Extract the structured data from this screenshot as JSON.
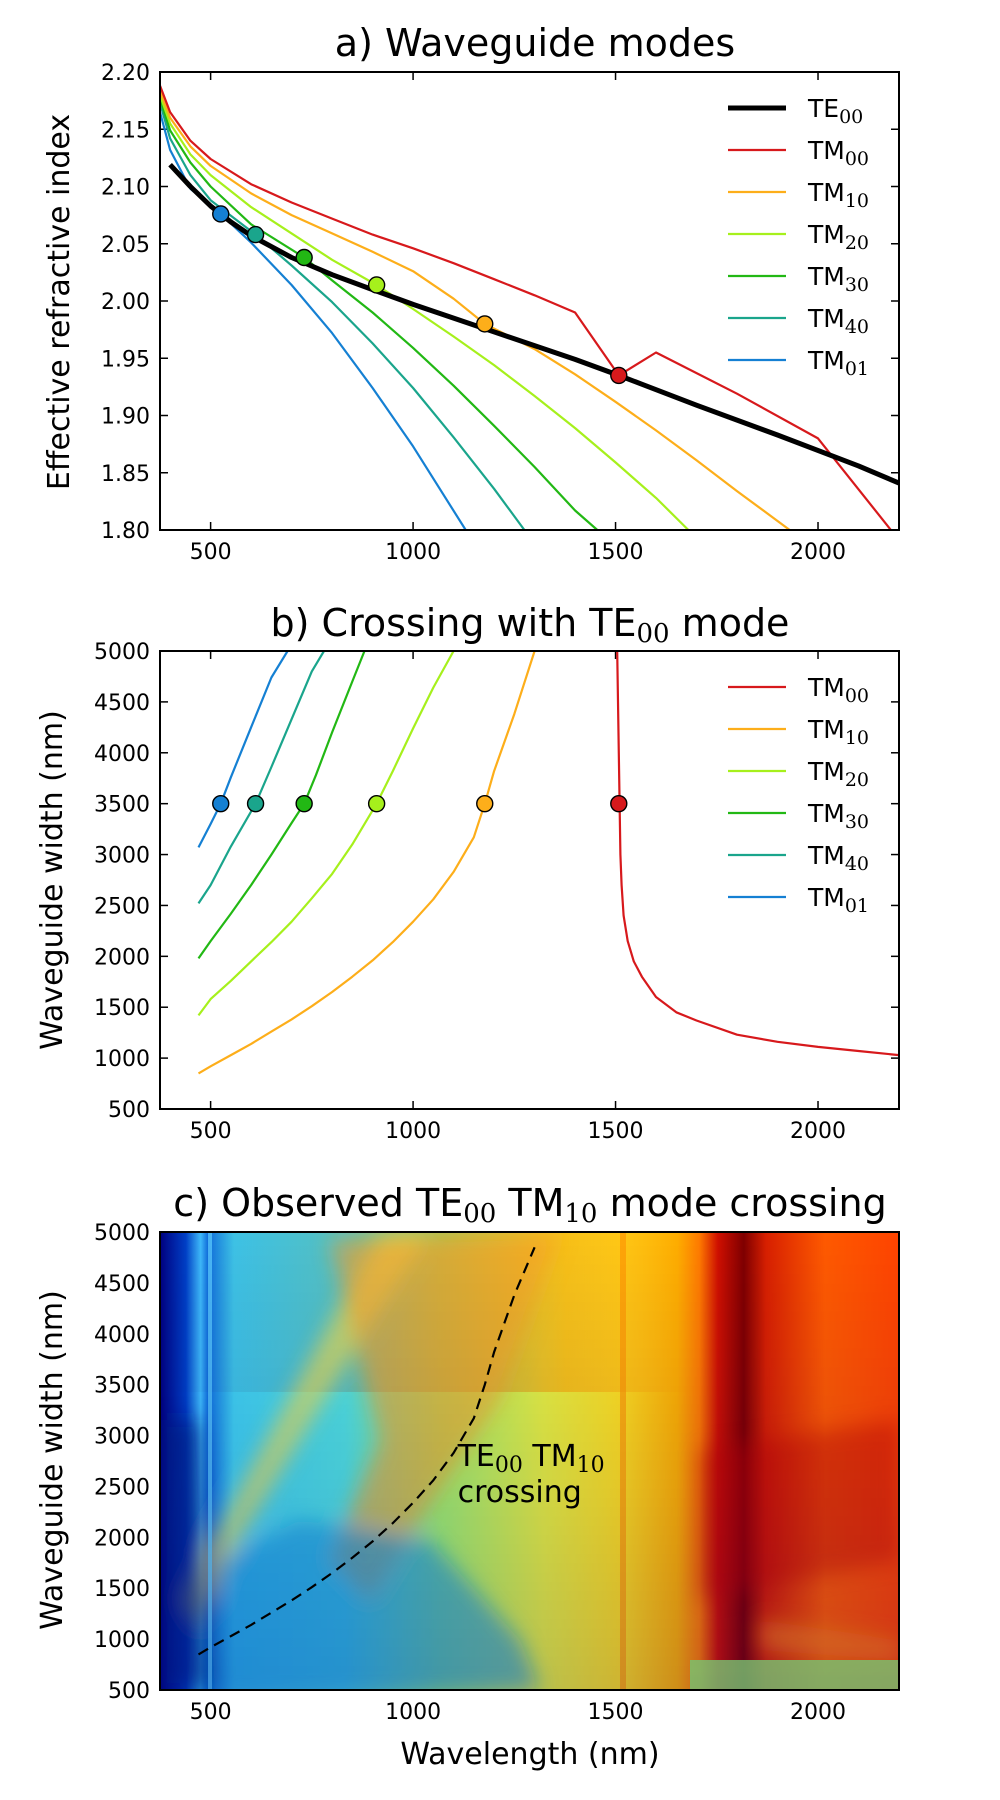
{
  "figure": {
    "xlabel": "Wavelength (nm)"
  },
  "chart_data": [
    {
      "type": "line",
      "title": {
        "pre": "a) Waveguide modes",
        "sub": "",
        "post": ""
      },
      "xlabel": "",
      "ylabel": "Effective refractive index",
      "xlim": [
        375,
        2200
      ],
      "ylim": [
        1.8,
        2.2
      ],
      "xticks": [
        500,
        1000,
        1500,
        2000
      ],
      "yticks": [
        1.8,
        1.85,
        1.9,
        1.95,
        2.0,
        2.05,
        2.1,
        2.15,
        2.2
      ],
      "ytick_decimals": 2,
      "legend_position": "upper-right",
      "series": [
        {
          "name": "TE",
          "sub": "00",
          "color": "#000000",
          "width": 5,
          "x": [
            400,
            450,
            500,
            550,
            600,
            700,
            800,
            900,
            1000,
            1200,
            1400,
            1508,
            1700,
            1900,
            2100,
            2200
          ],
          "y": [
            2.119,
            2.1,
            2.083,
            2.069,
            2.057,
            2.038,
            2.023,
            2.01,
            1.997,
            1.973,
            1.949,
            1.935,
            1.909,
            1.883,
            1.856,
            1.841
          ]
        },
        {
          "name": "TM",
          "sub": "00",
          "color": "#d7191c",
          "width": 2.2,
          "x": [
            375,
            400,
            450,
            500,
            600,
            700,
            800,
            900,
            1000,
            1100,
            1200,
            1300,
            1400,
            1508,
            1600,
            1800,
            2000,
            2180
          ],
          "y": [
            2.188,
            2.165,
            2.14,
            2.124,
            2.102,
            2.086,
            2.072,
            2.058,
            2.046,
            2.033,
            2.019,
            2.005,
            1.99,
            1.935,
            1.955,
            1.919,
            1.88,
            1.8
          ]
        },
        {
          "name": "TM",
          "sub": "10",
          "color": "#fdae1a",
          "width": 2.2,
          "x": [
            375,
            400,
            450,
            500,
            600,
            700,
            800,
            900,
            1000,
            1100,
            1177,
            1300,
            1400,
            1500,
            1600,
            1700,
            1800,
            1930
          ],
          "y": [
            2.184,
            2.16,
            2.135,
            2.118,
            2.094,
            2.075,
            2.059,
            2.043,
            2.026,
            2.002,
            1.98,
            1.958,
            1.936,
            1.912,
            1.887,
            1.861,
            1.834,
            1.8
          ]
        },
        {
          "name": "TM",
          "sub": "20",
          "color": "#a6f01c",
          "width": 2.2,
          "x": [
            375,
            400,
            450,
            500,
            600,
            700,
            800,
            910,
            1000,
            1100,
            1200,
            1300,
            1400,
            1500,
            1600,
            1680
          ],
          "y": [
            2.18,
            2.155,
            2.128,
            2.11,
            2.082,
            2.059,
            2.036,
            2.014,
            1.993,
            1.969,
            1.944,
            1.917,
            1.889,
            1.859,
            1.828,
            1.8
          ]
        },
        {
          "name": "TM",
          "sub": "30",
          "color": "#22b814",
          "width": 2.2,
          "x": [
            375,
            400,
            450,
            500,
            600,
            731,
            800,
            900,
            1000,
            1100,
            1200,
            1300,
            1400,
            1455
          ],
          "y": [
            2.177,
            2.149,
            2.121,
            2.1,
            2.067,
            2.038,
            2.018,
            1.99,
            1.959,
            1.926,
            1.891,
            1.855,
            1.817,
            1.8
          ]
        },
        {
          "name": "TM",
          "sub": "40",
          "color": "#1aa58c",
          "width": 2.2,
          "x": [
            375,
            400,
            450,
            500,
            611,
            700,
            800,
            900,
            1000,
            1100,
            1200,
            1275
          ],
          "y": [
            2.173,
            2.142,
            2.11,
            2.088,
            2.058,
            2.031,
            1.999,
            1.963,
            1.924,
            1.881,
            1.836,
            1.8
          ]
        },
        {
          "name": "TM",
          "sub": "01",
          "color": "#1580d3",
          "width": 2.2,
          "x": [
            375,
            400,
            450,
            525,
            600,
            700,
            800,
            900,
            1000,
            1130
          ],
          "y": [
            2.165,
            2.132,
            2.098,
            2.076,
            2.051,
            2.014,
            1.972,
            1.924,
            1.873,
            1.8
          ]
        }
      ],
      "markers": [
        {
          "x": 525,
          "y": 2.076,
          "color": "#1580d3"
        },
        {
          "x": 611,
          "y": 2.058,
          "color": "#1aa58c"
        },
        {
          "x": 731,
          "y": 2.038,
          "color": "#22b814"
        },
        {
          "x": 910,
          "y": 2.014,
          "color": "#a6f01c"
        },
        {
          "x": 1177,
          "y": 1.98,
          "color": "#fdae1a"
        },
        {
          "x": 1508,
          "y": 1.935,
          "color": "#d7191c"
        }
      ]
    },
    {
      "type": "line",
      "title": {
        "pre": "b) Crossing with TE",
        "sub": "00",
        "post": " mode"
      },
      "xlabel": "",
      "ylabel": "Waveguide width (nm)",
      "xlim": [
        375,
        2200
      ],
      "ylim": [
        500,
        5000
      ],
      "xticks": [
        500,
        1000,
        1500,
        2000
      ],
      "yticks": [
        500,
        1000,
        1500,
        2000,
        2500,
        3000,
        3500,
        4000,
        4500,
        5000
      ],
      "ytick_decimals": 0,
      "legend_position": "upper-right",
      "series": [
        {
          "name": "TM",
          "sub": "00",
          "color": "#d7191c",
          "width": 2.2,
          "x": [
            1504,
            1506,
            1508,
            1510,
            1512,
            1515,
            1520,
            1530,
            1545,
            1565,
            1600,
            1650,
            1700,
            1800,
            1900,
            2000,
            2100,
            2200
          ],
          "y": [
            5000,
            4500,
            4000,
            3500,
            3000,
            2700,
            2400,
            2150,
            1950,
            1800,
            1600,
            1450,
            1370,
            1230,
            1160,
            1110,
            1070,
            1030
          ]
        },
        {
          "name": "TM",
          "sub": "10",
          "color": "#fdae1a",
          "width": 2.2,
          "x": [
            470,
            500,
            550,
            600,
            650,
            700,
            750,
            800,
            850,
            900,
            950,
            1000,
            1050,
            1100,
            1150,
            1177,
            1200,
            1250,
            1300
          ],
          "y": [
            850,
            920,
            1030,
            1140,
            1260,
            1380,
            1510,
            1650,
            1800,
            1960,
            2140,
            2340,
            2560,
            2830,
            3170,
            3500,
            3820,
            4380,
            5000
          ]
        },
        {
          "name": "TM",
          "sub": "20",
          "color": "#a6f01c",
          "width": 2.2,
          "x": [
            470,
            500,
            550,
            600,
            650,
            700,
            750,
            800,
            850,
            910,
            950,
            1000,
            1050,
            1100
          ],
          "y": [
            1420,
            1580,
            1760,
            1950,
            2140,
            2340,
            2570,
            2810,
            3100,
            3500,
            3820,
            4240,
            4640,
            5000
          ]
        },
        {
          "name": "TM",
          "sub": "30",
          "color": "#22b814",
          "width": 2.2,
          "x": [
            470,
            500,
            550,
            600,
            650,
            700,
            731,
            760,
            800,
            850,
            880
          ],
          "y": [
            1980,
            2150,
            2420,
            2700,
            3000,
            3310,
            3500,
            3780,
            4200,
            4700,
            5000
          ]
        },
        {
          "name": "TM",
          "sub": "40",
          "color": "#1aa58c",
          "width": 2.2,
          "x": [
            470,
            500,
            550,
            611,
            650,
            700,
            750,
            780
          ],
          "y": [
            2520,
            2700,
            3080,
            3500,
            3860,
            4330,
            4800,
            5000
          ]
        },
        {
          "name": "TM",
          "sub": "01",
          "color": "#1580d3",
          "width": 2.2,
          "x": [
            470,
            500,
            525,
            550,
            600,
            650,
            690
          ],
          "y": [
            3070,
            3300,
            3500,
            3760,
            4250,
            4740,
            5000
          ]
        }
      ],
      "markers": [
        {
          "x": 525,
          "y": 3500,
          "color": "#1580d3"
        },
        {
          "x": 611,
          "y": 3500,
          "color": "#1aa58c"
        },
        {
          "x": 731,
          "y": 3500,
          "color": "#22b814"
        },
        {
          "x": 910,
          "y": 3500,
          "color": "#a6f01c"
        },
        {
          "x": 1177,
          "y": 3500,
          "color": "#fdae1a"
        },
        {
          "x": 1508,
          "y": 3500,
          "color": "#d7191c"
        }
      ]
    },
    {
      "type": "heatmap",
      "title": {
        "pre": "c) Observed TE",
        "sub": "00",
        "mid": " TM",
        "sub2": "10",
        "post": " mode crossing"
      },
      "xlabel": "Wavelength (nm)",
      "ylabel": "Waveguide width (nm)",
      "xlim": [
        375,
        2200
      ],
      "ylim": [
        500,
        5000
      ],
      "xticks": [
        500,
        1000,
        1500,
        2000
      ],
      "yticks": [
        500,
        1000,
        1500,
        2000,
        2500,
        3000,
        3500,
        4000,
        4500,
        5000
      ],
      "ytick_decimals": 0,
      "colormap": "jet",
      "annotation": {
        "line1": {
          "pre": "TE",
          "sub": "00",
          "mid": " TM",
          "sub2": "10"
        },
        "line2": "crossing",
        "x": 1110,
        "y": 2700
      },
      "dashed_curve": {
        "color": "#000000",
        "x": [
          470,
          500,
          550,
          600,
          650,
          700,
          750,
          800,
          850,
          900,
          950,
          1000,
          1050,
          1100,
          1150,
          1177,
          1200,
          1250,
          1300
        ],
        "y": [
          850,
          920,
          1030,
          1140,
          1260,
          1380,
          1510,
          1650,
          1800,
          1960,
          2140,
          2340,
          2560,
          2830,
          3170,
          3500,
          3820,
          4380,
          4850
        ]
      }
    }
  ]
}
